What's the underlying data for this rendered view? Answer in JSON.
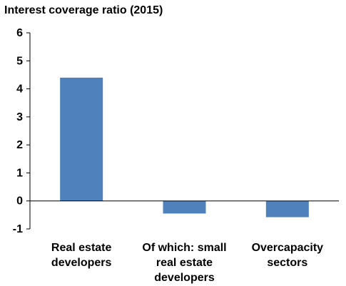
{
  "chart_data": {
    "type": "bar",
    "title": "Interest coverage ratio (2015)",
    "categories": [
      "Real estate developers",
      "Of which: small real estate developers",
      "Overcapacity sectors"
    ],
    "category_label_lines": [
      [
        "Real estate",
        "developers"
      ],
      [
        "Of which: small",
        "real estate",
        "developers"
      ],
      [
        "Overcapacity",
        "sectors"
      ]
    ],
    "values": [
      4.4,
      -0.45,
      -0.58
    ],
    "ylim": [
      -1,
      6
    ],
    "yticks": [
      6,
      5,
      4,
      3,
      2,
      1,
      0,
      -1
    ],
    "ytick_labels": [
      "6",
      "5",
      "4",
      "3",
      "2",
      "1",
      "0",
      "-1"
    ],
    "xlabel": "",
    "ylabel": "",
    "grid": false,
    "bar_color": "#4F81BD",
    "axis_color": "#000000"
  }
}
